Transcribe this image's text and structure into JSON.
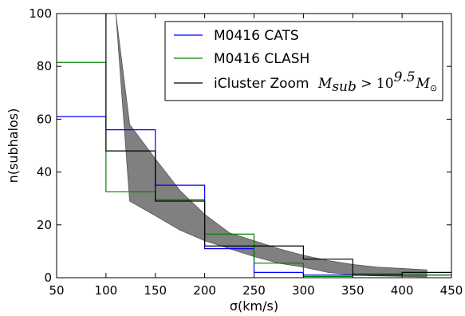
{
  "chart_data": {
    "type": "line",
    "title": "",
    "xlabel": "σ(km/s)",
    "ylabel": "n(subhalos)",
    "xlim": [
      50,
      450
    ],
    "ylim": [
      0,
      100
    ],
    "xticks": [
      50,
      100,
      150,
      200,
      250,
      300,
      350,
      400,
      450
    ],
    "yticks": [
      0,
      20,
      40,
      60,
      80,
      100
    ],
    "grid": false,
    "legend_position": "top-right",
    "series": [
      {
        "name": "M0416 CATS",
        "style": "step",
        "color": "#0000ff",
        "bins": [
          [
            50,
            100,
            61
          ],
          [
            100,
            150,
            56
          ],
          [
            150,
            200,
            35
          ],
          [
            200,
            250,
            11
          ],
          [
            250,
            300,
            2
          ],
          [
            300,
            350,
            1
          ],
          [
            350,
            400,
            1
          ],
          [
            400,
            450,
            1
          ]
        ]
      },
      {
        "name": "M0416 CLASH",
        "style": "step",
        "color": "#008000",
        "bins": [
          [
            50,
            100,
            81.5
          ],
          [
            100,
            150,
            32.5
          ],
          [
            150,
            200,
            29.5
          ],
          [
            200,
            250,
            16.5
          ],
          [
            250,
            300,
            5.5
          ],
          [
            300,
            350,
            0.5
          ],
          [
            350,
            400,
            1.5
          ],
          [
            400,
            450,
            1
          ]
        ]
      },
      {
        "name": "iCluster Zoom",
        "name_math": "M_sub > 10^9.5 M_⊙",
        "style": "step",
        "color": "#000000",
        "bins": [
          [
            100,
            150,
            48
          ],
          [
            150,
            200,
            29
          ],
          [
            200,
            250,
            12
          ],
          [
            250,
            300,
            12
          ],
          [
            300,
            350,
            7
          ],
          [
            350,
            400,
            1
          ],
          [
            400,
            450,
            2
          ]
        ],
        "lead_vertical": [
          100,
          48,
          100
        ]
      }
    ],
    "band": {
      "color": "#808080",
      "upper": [
        [
          110,
          100
        ],
        [
          124,
          58
        ],
        [
          150,
          45
        ],
        [
          175,
          33
        ],
        [
          200,
          24
        ],
        [
          225,
          17
        ],
        [
          250,
          14
        ],
        [
          275,
          11
        ],
        [
          300,
          8.5
        ],
        [
          325,
          6.5
        ],
        [
          350,
          5
        ],
        [
          375,
          4
        ],
        [
          400,
          3.5
        ],
        [
          425,
          3
        ]
      ],
      "lower": [
        [
          110,
          100
        ],
        [
          124,
          29
        ],
        [
          150,
          23.5
        ],
        [
          175,
          18
        ],
        [
          200,
          14
        ],
        [
          225,
          11
        ],
        [
          250,
          8
        ],
        [
          275,
          5.5
        ],
        [
          300,
          4
        ],
        [
          325,
          2
        ],
        [
          350,
          1
        ],
        [
          375,
          0.7
        ],
        [
          400,
          0.5
        ],
        [
          425,
          0.3
        ]
      ],
      "upper_extra": [
        [
          99.5,
          100
        ]
      ]
    }
  },
  "legend": {
    "items": [
      {
        "label": "M0416 CATS",
        "color": "#0000ff"
      },
      {
        "label": "M0416 CLASH",
        "color": "#008000"
      },
      {
        "label": "iCluster Zoom",
        "color": "#000000"
      }
    ],
    "math": {
      "M": "M",
      "sub": "sub",
      "gt": " > 10",
      "exp": "9.5",
      "M2": "M",
      "sun": "⊙"
    }
  }
}
